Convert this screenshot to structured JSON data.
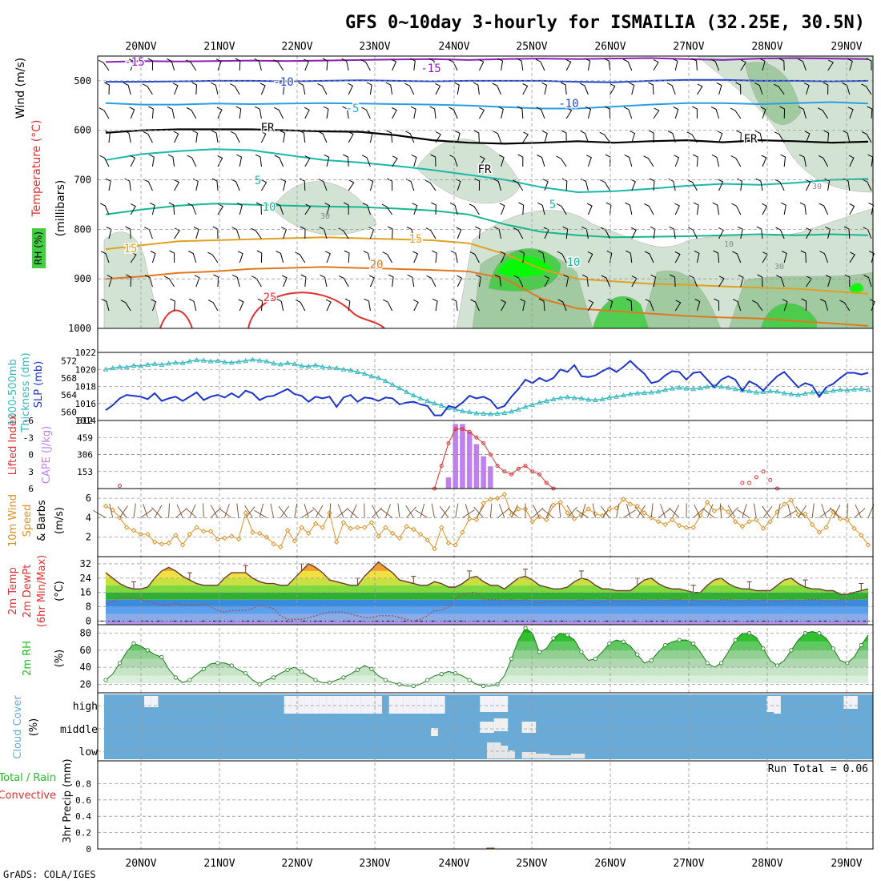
{
  "title": "GFS 0~10day 3-hourly for ISMAILIA (32.25E, 30.5N)",
  "footer": "GrADS: COLA/IGES",
  "dates": [
    "20NOV",
    "21NOV",
    "22NOV",
    "23NOV",
    "24NOV",
    "25NOV",
    "26NOV",
    "27NOV",
    "28NOV",
    "29NOV"
  ],
  "colors": {
    "temp_m15": "#8b1fb8",
    "temp_m10": "#2244cc",
    "temp_m5": "#2a9ee0",
    "temp_fr": "#000000",
    "temp_5": "#1ab8a8",
    "temp_10": "#14b890",
    "temp_15": "#e0a020",
    "temp_20": "#e07820",
    "temp_25": "#e03030",
    "rh_light": "#cfe0cf",
    "rh_mid": "#9cc89c",
    "rh_strong": "#44cc44",
    "rh_max": "#00ff00",
    "slp": "#1a33cc",
    "thickness": "#30b8c0",
    "cape": "#c080f0",
    "lifted": "#e03030",
    "wind": "#e09020",
    "dewpt": "#a05a5a",
    "rh2m": "#20c020",
    "cloud": "#6aaad6",
    "precip_conv": "#e03030"
  },
  "panel1": {
    "ylabel_wind": "Wind (m/s)",
    "ylabel_temp": "Temperature (°C)",
    "ylabel_rh": "RH (%)",
    "ylabel_mb": "(millibars)",
    "yticks": [
      "500",
      "600",
      "700",
      "800",
      "900",
      "1000"
    ],
    "contour_labels": {
      "m15a": "-15",
      "m15b": "-15",
      "m10a": "-10",
      "m10b": "-10",
      "m5": "-5",
      "fr1": "FR",
      "fr2": "FR",
      "fr3": "FR",
      "p5a": "5",
      "p5b": "5",
      "p10a": "10",
      "p10b": "10",
      "p15a": "15",
      "p15b": "15",
      "p20": "20",
      "p25": "25",
      "rh30a": "30",
      "rh30b": "30",
      "rh10": "10",
      "rh30c": "30"
    }
  },
  "panel2": {
    "ylabel_thick": "1000-500mb",
    "ylabel_thick2": "Thickness (dm)",
    "ylabel_slp": "SLP (mb)",
    "left_ticks": [
      "572",
      "568",
      "564",
      "560"
    ],
    "right_ticks": [
      "1022",
      "1020",
      "1018",
      "1016",
      "1014"
    ]
  },
  "panel3": {
    "ylabel_li": "Lifted Index",
    "ylabel_cape": "CAPE (J/kg)",
    "left_ticks": [
      "-6",
      "-3",
      "0",
      "3",
      "6"
    ],
    "right_ticks": [
      "612",
      "459",
      "306",
      "153"
    ]
  },
  "panel4": {
    "ylabel_a": "10m Wind",
    "ylabel_b": "Speed",
    "ylabel_c": "& Barbs",
    "ylabel_unit": "(m/s)",
    "ticks": [
      "6",
      "4",
      "2"
    ]
  },
  "panel5": {
    "ylabel_a": "2m Temp",
    "ylabel_b": "2m DewPt",
    "ylabel_c": "(6hr Min/Max)",
    "ylabel_unit": "(°C)",
    "ticks": [
      "32",
      "24",
      "16",
      "8",
      "0"
    ]
  },
  "panel6": {
    "ylabel": "2m RH",
    "ylabel_unit": "(%)",
    "ticks": [
      "80",
      "60",
      "40",
      "20"
    ]
  },
  "panel7": {
    "ylabel": "Cloud Cover",
    "ylabel_unit": "(%)",
    "levels": [
      "high",
      "middle",
      "low"
    ]
  },
  "panel8": {
    "ylabel_a": "Total / Rain",
    "ylabel_b": "Convective",
    "ylabel_c": "3hr Precip (mm)",
    "ticks": [
      "0.8",
      "0.6",
      "0.4",
      "0.2",
      "0"
    ],
    "run_total": "Run Total = 0.06"
  },
  "chart_data": [
    {
      "type": "line",
      "title": "1000-500mb Thickness (dm) and SLP (mb)",
      "x_hours_step": 3,
      "series": [
        {
          "name": "SLP (mb)",
          "ylim": [
            1014,
            1022
          ],
          "values": [
            1015.2,
            1015.8,
            1016.6,
            1017.0,
            1016.9,
            1016.8,
            1016.5,
            1017.2,
            1016.3,
            1016.6,
            1016.8,
            1016.3,
            1016.8,
            1017.3,
            1016.4,
            1016.8,
            1017.0,
            1016.7,
            1017.2,
            1016.7,
            1017.5,
            1017.2,
            1016.4,
            1016.8,
            1016.9,
            1017.3,
            1017.7,
            1017.1,
            1016.9,
            1016.2,
            1016.8,
            1016.6,
            1016.8,
            1015.6,
            1016.7,
            1017.0,
            1016.2,
            1016.7,
            1016.6,
            1016.3,
            1016.7,
            1016.6,
            1015.9,
            1016.1,
            1016.2,
            1015.9,
            1015.7,
            1014.6,
            1014.6,
            1015.7,
            1015.5,
            1016.1,
            1016.9,
            1016.6,
            1016.8,
            1016.4,
            1015.4,
            1015.7,
            1016.8,
            1017.7,
            1018.8,
            1018.4,
            1019.0,
            1018.6,
            1019.0,
            1020.0,
            1019.7,
            1020.5,
            1019.2,
            1019.1,
            1019.3,
            1019.8,
            1020.2,
            1019.7,
            1020.3,
            1021.0,
            1020.2,
            1019.5,
            1018.4,
            1018.6,
            1019.3,
            1019.8,
            1019.7,
            1018.8,
            1019.6,
            1019.7,
            1018.8,
            1017.9,
            1018.8,
            1019.2,
            1018.8,
            1017.5,
            1018.6,
            1018.2,
            1017.5,
            1018.4,
            1019.2,
            1019.7,
            1018.8,
            1017.9,
            1018.4,
            1018.1,
            1016.8,
            1017.9,
            1018.3,
            1019.0,
            1019.6,
            1019.6,
            1019.4,
            1019.6
          ]
        },
        {
          "name": "1000-500mb Thickness (dm)",
          "ylim": [
            558,
            574
          ],
          "values": [
            570,
            570.3,
            570.6,
            570.5,
            570.9,
            570.8,
            571.1,
            571.3,
            571.1,
            571.4,
            571.6,
            571.5,
            571.9,
            572.2,
            572.1,
            571.9,
            572.0,
            571.7,
            571.6,
            571.8,
            572.0,
            572.3,
            572.1,
            571.9,
            571.4,
            571.2,
            571.5,
            571.3,
            570.8,
            570.7,
            571.0,
            570.6,
            570.4,
            570.3,
            570.0,
            569.8,
            569.4,
            569.0,
            568.4,
            568.0,
            567.3,
            566.4,
            565.6,
            564.7,
            563.9,
            563.2,
            562.6,
            562.0,
            561.5,
            560.9,
            560.6,
            560.2,
            560.0,
            559.7,
            559.6,
            559.5,
            559.6,
            559.8,
            560.1,
            560.6,
            561.2,
            561.7,
            562.2,
            562.6,
            563.0,
            563.3,
            563.5,
            563.3,
            563.2,
            562.9,
            562.8,
            563.0,
            563.4,
            563.6,
            563.9,
            564.2,
            564.4,
            564.5,
            564.6,
            564.8,
            565.2,
            565.5,
            565.7,
            565.5,
            565.4,
            565.6,
            565.9,
            566.1,
            565.9,
            565.7,
            565.4,
            565.1,
            564.9,
            564.6,
            564.7,
            564.9,
            564.8,
            564.4,
            564.2,
            564.0,
            564.3,
            564.6,
            564.5,
            564.7,
            565.0,
            565.2,
            565.1,
            565.3,
            565.4,
            565.2
          ]
        }
      ]
    },
    {
      "type": "bar",
      "title": "CAPE (J/kg)",
      "x_index": [
        49,
        50,
        51,
        52,
        53,
        54,
        55
      ],
      "values": [
        100,
        580,
        580,
        510,
        400,
        290,
        200
      ]
    },
    {
      "type": "line",
      "title": "10m Wind Speed (m/s)",
      "ylim": [
        0,
        7
      ],
      "values": [
        5.2,
        4.8,
        4.0,
        3.0,
        2.7,
        2.3,
        2.3,
        1.5,
        1.3,
        1.4,
        2.2,
        1.2,
        2.3,
        3.0,
        2.6,
        2.6,
        1.8,
        1.9,
        2.1,
        1.8,
        4.5,
        2.5,
        2.4,
        2.0,
        1.3,
        1.0,
        2.7,
        1.6,
        3.0,
        2.4,
        3.4,
        3.0,
        4.5,
        1.5,
        3.5,
        2.9,
        3.0,
        3.0,
        3.5,
        2.1,
        3.0,
        2.4,
        1.9,
        3.1,
        2.8,
        2.3,
        1.7,
        0.8,
        3.0,
        1.4,
        1.2,
        2.5,
        3.9,
        3.8,
        5.5,
        5.9,
        6.0,
        6.4,
        4.3,
        4.9,
        4.9,
        3.6,
        4.1,
        3.8,
        5.3,
        5.6,
        4.5,
        3.9,
        4.3,
        4.9,
        4.4,
        4.2,
        4.9,
        5.0,
        5.9,
        5.4,
        5.2,
        4.5,
        4.0,
        3.6,
        3.3,
        3.8,
        3.2,
        3.0,
        3.0,
        4.2,
        5.6,
        4.7,
        5.0,
        4.6,
        3.6,
        3.1,
        3.6,
        3.8,
        2.9,
        3.6,
        4.6,
        5.4,
        5.8,
        4.3,
        4.4,
        3.3,
        2.5,
        3.0,
        4.6,
        3.9,
        3.8,
        2.9,
        2.2,
        1.2
      ]
    },
    {
      "type": "area",
      "title": "2m Temp / 2m DewPt (°C)",
      "ylim": [
        -2,
        36
      ],
      "series": [
        {
          "name": "2m Temp",
          "values": [
            27,
            24,
            21,
            19,
            18,
            18,
            19,
            24,
            28,
            30,
            28,
            25,
            23,
            21,
            20,
            20,
            20,
            24,
            27,
            27,
            27,
            24,
            22,
            21,
            21,
            20,
            20,
            24,
            28,
            32,
            30,
            27,
            23,
            22,
            21,
            20,
            20,
            25,
            29,
            33,
            30,
            27,
            23,
            22,
            21,
            20,
            20,
            22,
            21,
            19,
            19,
            21,
            24,
            25,
            22,
            20,
            20,
            18,
            21,
            24,
            25,
            23,
            20,
            19,
            18,
            18,
            19,
            22,
            24,
            23,
            20,
            18,
            18,
            17,
            17,
            17,
            20,
            23,
            24,
            21,
            19,
            18,
            18,
            17,
            16,
            16,
            20,
            23,
            24,
            21,
            19,
            18,
            18,
            17,
            17,
            17,
            20,
            23,
            24,
            21,
            19,
            18,
            18,
            17,
            17,
            15,
            15,
            16,
            17,
            18
          ]
        },
        {
          "name": "2m DewPt",
          "values": [
            10,
            11,
            13,
            13,
            13,
            12,
            11,
            10,
            9,
            9,
            10,
            9,
            9,
            9,
            10,
            8,
            6,
            5,
            6,
            6,
            6,
            7,
            9,
            8,
            7,
            3,
            1,
            1,
            1,
            2,
            3,
            4,
            5,
            5,
            5,
            4,
            3,
            2,
            2,
            3,
            3,
            3,
            2,
            1,
            0,
            1,
            3,
            6,
            6,
            8,
            12,
            15,
            16,
            16,
            12,
            12,
            12,
            11,
            12,
            11,
            12,
            11,
            10,
            11,
            11,
            11,
            11,
            11,
            12,
            11,
            10,
            11,
            12,
            11,
            11,
            11,
            11,
            12,
            11,
            12,
            11,
            12,
            12,
            11,
            12,
            11,
            11,
            11,
            12,
            12,
            11,
            11,
            12,
            11,
            12,
            11,
            11,
            11,
            12,
            11,
            12,
            12,
            12,
            11,
            11,
            12,
            12,
            12,
            13,
            14
          ]
        }
      ]
    },
    {
      "type": "area",
      "title": "2m RH (%)",
      "ylim": [
        10,
        90
      ],
      "values": [
        25,
        32,
        45,
        58,
        68,
        65,
        60,
        55,
        52,
        38,
        28,
        22,
        25,
        32,
        38,
        44,
        45,
        45,
        42,
        37,
        33,
        25,
        20,
        25,
        28,
        33,
        37,
        40,
        35,
        30,
        25,
        22,
        22,
        25,
        28,
        32,
        37,
        42,
        38,
        30,
        25,
        22,
        20,
        18,
        18,
        20,
        25,
        30,
        32,
        35,
        33,
        30,
        25,
        20,
        18,
        18,
        20,
        30,
        50,
        72,
        86,
        80,
        58,
        62,
        74,
        80,
        78,
        72,
        58,
        48,
        50,
        58,
        68,
        72,
        70,
        65,
        55,
        45,
        48,
        58,
        66,
        70,
        72,
        72,
        68,
        58,
        45,
        40,
        45,
        58,
        72,
        80,
        80,
        75,
        62,
        48,
        42,
        48,
        60,
        72,
        80,
        82,
        80,
        74,
        62,
        48,
        45,
        52,
        66,
        78,
        82,
        80,
        72,
        62
      ]
    },
    {
      "type": "bar",
      "title": "3hr Precip (mm)",
      "ylim": [
        0,
        1
      ],
      "x_index": [
        55
      ],
      "values": [
        0.06
      ]
    }
  ]
}
